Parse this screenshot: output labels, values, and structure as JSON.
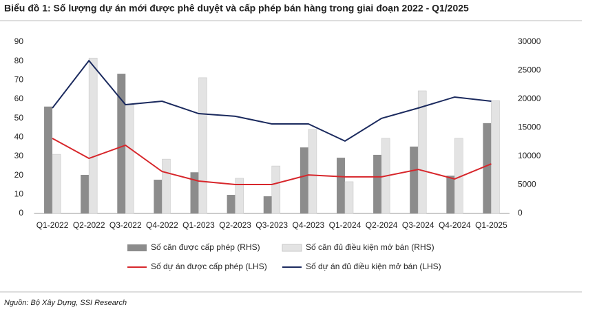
{
  "chart_data": {
    "type": "bar-line",
    "title": "Biểu đồ 1: Số lượng dự án mới được phê duyệt và cấp phép bán hàng trong giai đoạn 2022 - Q1/2025",
    "categories": [
      "Q1-2022",
      "Q2-2022",
      "Q3-2022",
      "Q4-2022",
      "Q1-2023",
      "Q2-2023",
      "Q3-2023",
      "Q4-2023",
      "Q1-2024",
      "Q2-2024",
      "Q3-2024",
      "Q4-2024",
      "Q1-2025"
    ],
    "series": [
      {
        "name": "Số căn được cấp phép (RHS)",
        "type": "bar",
        "axis": "y2",
        "color": "#8c8c8c",
        "values": [
          18700,
          6750,
          24450,
          5900,
          7200,
          3250,
          3000,
          11550,
          9750,
          10250,
          11700,
          6600,
          15800
        ]
      },
      {
        "name": "Số căn đủ điều kiện mở bán (RHS)",
        "type": "bar",
        "axis": "y2",
        "color": "#e3e3e3",
        "values": [
          10350,
          27200,
          19050,
          9500,
          23750,
          6150,
          8300,
          14700,
          5550,
          13150,
          21450,
          13150,
          19750
        ]
      },
      {
        "name": "Số dự án được cấp phép (LHS)",
        "type": "line",
        "color": "#d7262b",
        "values": [
          39.4,
          28.9,
          35.8,
          22,
          17,
          15.2,
          15.2,
          20.2,
          19.2,
          19.2,
          23.1,
          18.1,
          26
        ]
      },
      {
        "name": "Số dự án đủ điều kiện mở bán (LHS)",
        "type": "line",
        "color": "#1b2a5e",
        "values": [
          55.3,
          80.2,
          57.1,
          58.9,
          52.4,
          51,
          47,
          47,
          38,
          49.9,
          55.3,
          61.1,
          58.9
        ]
      }
    ],
    "ylim": [
      0,
      90
    ],
    "yticks": [
      0,
      10,
      20,
      30,
      40,
      50,
      60,
      70,
      80,
      90
    ],
    "y2lim": [
      0,
      30000
    ],
    "y2ticks": [
      0,
      5000,
      10000,
      15000,
      20000,
      25000,
      30000
    ],
    "grid": false,
    "source": "Nguồn: Bộ Xây Dựng, SSI Research"
  }
}
